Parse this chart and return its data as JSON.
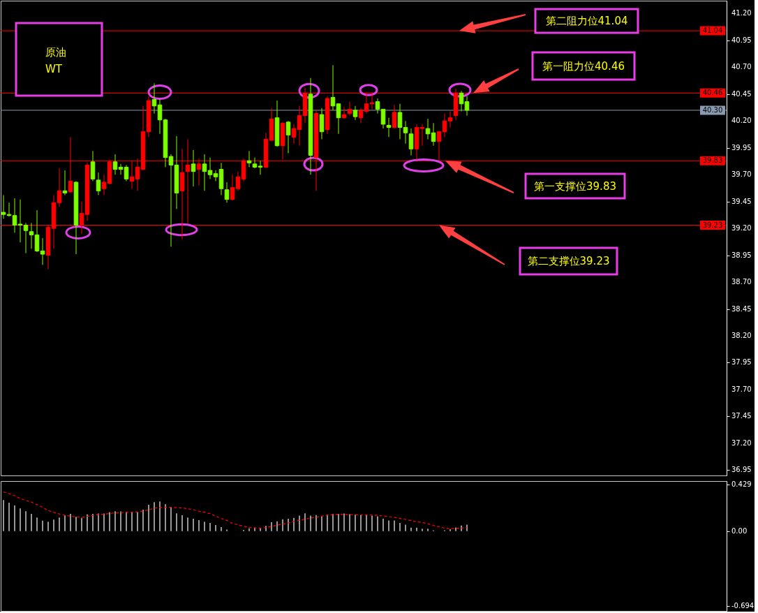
{
  "chart_data": [
    {
      "type": "candlestick",
      "categories": [
        null,
        null,
        null,
        null,
        null,
        null,
        null,
        null,
        null,
        null,
        null,
        null,
        null,
        null,
        null,
        null,
        null,
        null,
        null,
        null,
        null,
        null,
        null,
        null,
        null,
        null,
        null,
        null,
        null,
        null,
        null,
        null,
        null,
        null,
        null,
        null,
        null,
        null,
        null,
        null,
        null,
        null,
        null,
        null,
        null,
        null,
        null,
        null,
        null,
        null,
        null,
        null,
        null,
        null,
        null,
        null,
        null,
        null,
        null,
        null,
        null,
        null,
        null,
        null,
        null,
        null,
        null,
        null,
        null,
        null,
        null,
        null,
        null,
        null,
        null,
        null,
        null,
        null,
        null,
        null,
        null,
        null,
        null,
        null,
        null,
        null,
        null,
        null,
        null,
        null,
        null,
        null,
        null,
        null,
        null,
        null,
        null,
        null,
        null,
        null,
        null,
        null,
        null,
        null,
        null,
        null,
        null,
        null,
        null,
        null,
        null,
        null,
        null,
        null,
        null,
        null,
        null,
        null,
        null,
        null,
        null,
        null,
        null,
        null,
        null,
        null,
        null,
        null,
        null,
        null
      ],
      "ohlc": [
        [
          39.35,
          39.51,
          39.29,
          39.33
        ],
        [
          39.33,
          39.44,
          39.31,
          39.32
        ],
        [
          39.32,
          39.48,
          39.16,
          39.23
        ],
        [
          39.24,
          39.47,
          39.07,
          39.23
        ],
        [
          39.23,
          39.25,
          38.97,
          39.18
        ],
        [
          39.17,
          39.25,
          39.01,
          39.14
        ],
        [
          39.14,
          39.37,
          38.98,
          38.99
        ],
        [
          38.99,
          39.11,
          38.86,
          38.96
        ],
        [
          38.95,
          39.23,
          38.82,
          39.21
        ],
        [
          39.2,
          39.51,
          39.01,
          39.44
        ],
        [
          39.44,
          39.76,
          39.4,
          39.55
        ],
        [
          39.55,
          39.74,
          39.51,
          39.53
        ],
        [
          39.54,
          40.05,
          39.53,
          39.64
        ],
        [
          39.63,
          39.64,
          38.96,
          39.23
        ],
        [
          39.23,
          39.45,
          39.15,
          39.34
        ],
        [
          39.33,
          39.81,
          39.27,
          39.79
        ],
        [
          39.82,
          39.92,
          39.64,
          39.66
        ],
        [
          39.65,
          39.72,
          39.51,
          39.55
        ],
        [
          39.57,
          39.7,
          39.51,
          39.63
        ],
        [
          39.62,
          39.84,
          39.61,
          39.82
        ],
        [
          39.82,
          39.89,
          39.7,
          39.75
        ],
        [
          39.77,
          39.8,
          39.7,
          39.75
        ],
        [
          39.77,
          39.79,
          39.64,
          39.66
        ],
        [
          39.64,
          39.83,
          39.57,
          39.68
        ],
        [
          39.66,
          39.85,
          39.55,
          39.77
        ],
        [
          39.75,
          40.34,
          39.74,
          40.1
        ],
        [
          40.1,
          40.43,
          40.05,
          40.39
        ],
        [
          40.4,
          40.55,
          40.27,
          40.34
        ],
        [
          40.35,
          40.4,
          40.08,
          40.21
        ],
        [
          40.21,
          40.22,
          39.77,
          39.86
        ],
        [
          39.87,
          39.89,
          39.03,
          39.79
        ],
        [
          39.79,
          40.06,
          39.38,
          39.53
        ],
        [
          39.55,
          39.94,
          39.1,
          39.72
        ],
        [
          39.73,
          40.03,
          39.25,
          39.79
        ],
        [
          39.8,
          39.93,
          39.59,
          39.73
        ],
        [
          39.75,
          39.85,
          39.6,
          39.8
        ],
        [
          39.8,
          39.89,
          39.55,
          39.73
        ],
        [
          39.74,
          39.86,
          39.66,
          39.7
        ],
        [
          39.71,
          39.74,
          39.64,
          39.68
        ],
        [
          39.75,
          39.81,
          39.51,
          39.57
        ],
        [
          39.56,
          39.63,
          39.44,
          39.47
        ],
        [
          39.47,
          39.7,
          39.46,
          39.58
        ],
        [
          39.57,
          39.73,
          39.55,
          39.68
        ],
        [
          39.66,
          39.85,
          39.64,
          39.83
        ],
        [
          39.83,
          39.92,
          39.77,
          39.81
        ],
        [
          39.8,
          39.86,
          39.76,
          39.77
        ],
        [
          39.78,
          39.83,
          39.7,
          39.77
        ],
        [
          39.77,
          40.09,
          39.76,
          40.03
        ],
        [
          40.02,
          40.32,
          40.01,
          40.22
        ],
        [
          40.23,
          40.39,
          39.96,
          39.97
        ],
        [
          39.97,
          40.19,
          39.84,
          40.18
        ],
        [
          40.19,
          40.2,
          39.9,
          40.07
        ],
        [
          40.05,
          40.17,
          39.99,
          40.13
        ],
        [
          40.12,
          40.34,
          39.97,
          40.25
        ],
        [
          40.25,
          40.51,
          40.18,
          40.46
        ],
        [
          40.45,
          40.6,
          39.7,
          39.88
        ],
        [
          39.86,
          40.3,
          39.55,
          40.27
        ],
        [
          40.26,
          40.32,
          40.03,
          40.1
        ],
        [
          40.12,
          40.43,
          40.08,
          40.41
        ],
        [
          40.42,
          40.72,
          40.3,
          40.34
        ],
        [
          40.36,
          40.36,
          40.08,
          40.23
        ],
        [
          40.23,
          40.33,
          40.22,
          40.26
        ],
        [
          40.27,
          40.38,
          40.25,
          40.31
        ],
        [
          40.3,
          40.34,
          40.21,
          40.24
        ],
        [
          40.23,
          40.32,
          40.18,
          40.3
        ],
        [
          40.29,
          40.47,
          40.27,
          40.36
        ],
        [
          40.36,
          40.47,
          40.31,
          40.37
        ],
        [
          40.38,
          40.41,
          40.27,
          40.31
        ],
        [
          40.31,
          40.31,
          40.13,
          40.17
        ],
        [
          40.16,
          40.23,
          40.05,
          40.14
        ],
        [
          40.14,
          40.35,
          40.13,
          40.28
        ],
        [
          40.28,
          40.36,
          40.03,
          40.14
        ],
        [
          40.14,
          40.2,
          39.99,
          40.09
        ],
        [
          40.08,
          40.13,
          39.88,
          39.94
        ],
        [
          39.94,
          40.17,
          39.84,
          40.14
        ],
        [
          40.13,
          40.17,
          39.97,
          40.14
        ],
        [
          40.13,
          40.22,
          40.03,
          40.08
        ],
        [
          40.09,
          40.18,
          39.97,
          40.01
        ],
        [
          40.01,
          40.11,
          39.83,
          40.1
        ],
        [
          40.1,
          40.27,
          40.05,
          40.2
        ],
        [
          40.2,
          40.29,
          40.14,
          40.23
        ],
        [
          40.25,
          40.5,
          40.21,
          40.46
        ],
        [
          40.46,
          40.48,
          40.29,
          40.36
        ],
        [
          40.38,
          40.43,
          40.25,
          40.3
        ],
        null,
        null,
        null,
        null,
        null,
        null,
        null,
        null,
        null,
        null,
        null,
        null,
        null,
        null,
        null,
        null,
        null,
        null,
        null,
        null,
        null,
        null,
        null,
        null,
        null,
        null,
        null,
        null,
        null,
        null,
        null,
        null,
        null,
        null,
        null,
        null,
        null,
        null,
        null,
        null,
        null,
        null,
        null,
        null,
        null,
        null
      ],
      "colors": [
        "#7cfc00",
        "#7cfc00",
        "#7cfc00",
        "#7cfc00",
        "#7cfc00",
        "#7cfc00",
        "#7cfc00",
        "#7cfc00",
        "#ff0000",
        "#ff0000",
        "#ff0000",
        "#7cfc00",
        "#ff0000",
        "#7cfc00",
        "#ff0000",
        "#ff0000",
        "#7cfc00",
        "#7cfc00",
        "#ff0000",
        "#ff0000",
        "#7cfc00",
        "#7cfc00",
        "#7cfc00",
        "#ff0000",
        "#ff0000",
        "#ff0000",
        "#ff0000",
        "#7cfc00",
        "#7cfc00",
        "#7cfc00",
        "#7cfc00",
        "#7cfc00",
        "#ff0000",
        "#ff0000",
        "#7cfc00",
        "#ff0000",
        "#7cfc00",
        "#7cfc00",
        "#7cfc00",
        "#7cfc00",
        "#7cfc00",
        "#ff0000",
        "#ff0000",
        "#ff0000",
        "#7cfc00",
        "#7cfc00",
        "#7cfc00",
        "#ff0000",
        "#ff0000",
        "#7cfc00",
        "#ff0000",
        "#7cfc00",
        "#ff0000",
        "#ff0000",
        "#ff0000",
        "#7cfc00",
        "#ff0000",
        "#7cfc00",
        "#ff0000",
        "#7cfc00",
        "#7cfc00",
        "#ff0000",
        "#ff0000",
        "#7cfc00",
        "#ff0000",
        "#ff0000",
        "#ff0000",
        "#7cfc00",
        "#7cfc00",
        "#7cfc00",
        "#ff0000",
        "#7cfc00",
        "#7cfc00",
        "#7cfc00",
        "#ff0000",
        "#ff0000",
        "#7cfc00",
        "#7cfc00",
        "#ff0000",
        "#ff0000",
        "#ff0000",
        "#ff0000",
        "#7cfc00",
        "#7cfc00",
        null,
        null,
        null,
        null,
        null,
        null,
        null,
        null,
        null,
        null,
        null,
        null,
        null,
        null,
        null,
        null,
        null,
        null,
        null,
        null,
        null,
        null,
        null,
        null,
        null,
        null,
        null,
        null,
        null,
        null,
        null,
        null,
        null,
        null,
        null,
        null,
        null,
        null,
        null,
        null,
        null,
        null,
        null,
        null,
        null,
        null
      ],
      "ylim": [
        36.9,
        41.32
      ],
      "yticks": [
        {
          "value": 41.2,
          "label": "41.20"
        },
        {
          "value": 40.95,
          "label": "40.95"
        },
        {
          "value": 40.7,
          "label": "40.70"
        },
        {
          "value": 40.45,
          "label": "40.45"
        },
        {
          "value": 40.2,
          "label": "40.20"
        },
        {
          "value": 39.95,
          "label": "39.95"
        },
        {
          "value": 39.7,
          "label": "39.70"
        },
        {
          "value": 39.45,
          "label": "39.45"
        },
        {
          "value": 39.2,
          "label": "39.20"
        },
        {
          "value": 38.95,
          "label": "38.95"
        },
        {
          "value": 38.7,
          "label": "38.70"
        },
        {
          "value": 38.45,
          "label": "38.45"
        },
        {
          "value": 38.2,
          "label": "38.20"
        },
        {
          "value": 37.95,
          "label": "37.95"
        },
        {
          "value": 37.7,
          "label": "37.70"
        },
        {
          "value": 37.45,
          "label": "37.45"
        },
        {
          "value": 37.2,
          "label": "37.20"
        },
        {
          "value": 36.95,
          "label": "36.95"
        }
      ],
      "ref_lines": [
        {
          "axis": "y",
          "value": 41.04,
          "label": "41.04",
          "color": "#ff0000"
        },
        {
          "axis": "y",
          "value": 40.46,
          "label": "40.46",
          "color": "#ff0000"
        },
        {
          "axis": "y",
          "value": 40.3,
          "label": "40.30",
          "color": "#8a9bb0"
        },
        {
          "axis": "y",
          "value": 39.83,
          "label": "39.83",
          "color": "#ff0000"
        },
        {
          "axis": "y",
          "value": 39.23,
          "label": "39.23",
          "color": "#ff0000"
        }
      ],
      "annotations": [
        "原油\nWT",
        {
          "text": "第二阻力位41.04",
          "y": 41.04
        },
        {
          "text": "第一阻力位40.46",
          "y": 40.46
        },
        {
          "text": "第一支撑位39.83",
          "y": 39.83
        },
        {
          "text": "第二支撑位39.23",
          "y": 39.23
        }
      ],
      "grid": false
    },
    {
      "type": "bar",
      "categories": [
        null,
        null,
        null,
        null,
        null,
        null,
        null,
        null,
        null,
        null,
        null,
        null,
        null,
        null,
        null,
        null,
        null,
        null,
        null,
        null,
        null,
        null,
        null,
        null,
        null,
        null,
        null,
        null,
        null,
        null,
        null,
        null,
        null,
        null,
        null,
        null,
        null,
        null,
        null,
        null,
        null,
        null,
        null,
        null,
        null,
        null,
        null,
        null,
        null,
        null,
        null,
        null,
        null,
        null,
        null,
        null,
        null,
        null,
        null,
        null,
        null,
        null,
        null,
        null,
        null,
        null,
        null,
        null,
        null,
        null,
        null,
        null,
        null,
        null,
        null,
        null,
        null,
        null,
        null,
        null,
        null,
        null,
        null,
        null,
        null,
        null,
        null,
        null,
        null,
        null,
        null,
        null,
        null,
        null,
        null,
        null,
        null,
        null,
        null,
        null,
        null,
        null,
        null,
        null,
        null,
        null,
        null,
        null,
        null,
        null,
        null,
        null,
        null,
        null,
        null,
        null,
        null,
        null,
        null,
        null,
        null,
        null,
        null,
        null,
        null,
        null,
        null,
        null,
        null,
        null
      ],
      "series": [
        {
          "type": "bar",
          "color": "#c8c8c8",
          "values": [
            0.286,
            0.261,
            0.236,
            0.208,
            0.183,
            0.158,
            0.125,
            0.095,
            0.086,
            0.106,
            0.125,
            0.145,
            0.158,
            0.131,
            0.122,
            0.153,
            0.158,
            0.161,
            0.161,
            0.175,
            0.183,
            0.181,
            0.178,
            0.172,
            0.178,
            0.197,
            0.242,
            0.267,
            0.272,
            0.247,
            0.222,
            0.164,
            0.145,
            0.125,
            0.114,
            0.1,
            0.086,
            0.075,
            0.056,
            0.036,
            0.014,
            null,
            null,
            0.011,
            0.025,
            0.031,
            0.028,
            0.047,
            0.081,
            0.089,
            0.108,
            0.114,
            0.122,
            0.142,
            0.164,
            0.142,
            0.147,
            0.139,
            0.15,
            0.158,
            0.158,
            0.161,
            0.156,
            0.153,
            0.147,
            0.145,
            0.142,
            0.136,
            0.114,
            0.097,
            0.097,
            0.075,
            0.058,
            0.031,
            0.031,
            0.022,
            0.022,
            0.008,
            null,
            0.008,
            0.017,
            0.033,
            0.05,
            0.058,
            null,
            null,
            null,
            null,
            null,
            null,
            null,
            null,
            null,
            null,
            null,
            null,
            null,
            null,
            null,
            null,
            null,
            null,
            null,
            null,
            null,
            null,
            null,
            null,
            null,
            null,
            null,
            null,
            null,
            null,
            null,
            null,
            null,
            null,
            null,
            null,
            null,
            null,
            null,
            null,
            null,
            null,
            null,
            null,
            null,
            null
          ]
        },
        {
          "type": "line",
          "color": "#ff0000",
          "line_style": "dashed",
          "values": [
            0.361,
            0.345,
            0.326,
            0.3,
            0.282,
            0.267,
            0.243,
            0.219,
            0.19,
            0.172,
            0.158,
            0.145,
            0.138,
            0.13,
            0.127,
            0.135,
            0.144,
            0.15,
            0.156,
            0.162,
            0.167,
            0.171,
            0.172,
            0.174,
            0.175,
            0.186,
            0.196,
            0.21,
            0.217,
            0.22,
            0.218,
            0.216,
            0.213,
            0.206,
            0.197,
            0.184,
            0.172,
            0.161,
            0.138,
            0.115,
            0.098,
            0.07,
            0.058,
            0.045,
            0.034,
            0.03,
            0.028,
            0.033,
            0.042,
            0.055,
            0.063,
            0.075,
            0.087,
            0.099,
            0.11,
            0.119,
            0.128,
            0.137,
            0.147,
            0.151,
            0.155,
            0.154,
            0.151,
            0.15,
            0.149,
            0.148,
            0.147,
            0.145,
            0.14,
            0.133,
            0.127,
            0.117,
            0.107,
            0.097,
            0.085,
            0.078,
            0.068,
            0.052,
            0.04,
            0.026,
            0.022,
            0.025,
            0.027,
            0.033,
            null,
            null,
            null,
            null,
            null,
            null,
            null,
            null,
            null,
            null,
            null,
            null,
            null,
            null,
            null,
            null,
            null,
            null,
            null,
            null,
            null,
            null,
            null,
            null,
            null,
            null,
            null,
            null,
            null,
            null,
            null,
            null,
            null,
            null,
            null,
            null,
            null,
            null,
            null,
            null,
            null,
            null,
            null,
            null,
            null,
            null
          ]
        }
      ],
      "ylim": [
        -0.736,
        0.461
      ],
      "yticks": [
        {
          "value": 0.429,
          "label": "0.429"
        },
        {
          "value": 0,
          "label": "0.00"
        },
        {
          "value": -0.694,
          "label": "-0.694"
        }
      ],
      "grid": false
    }
  ]
}
